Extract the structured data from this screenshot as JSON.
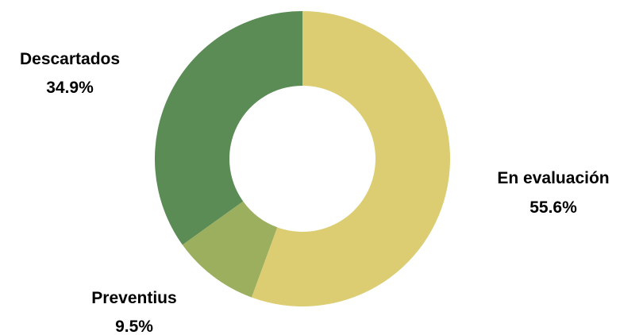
{
  "chart_data": {
    "type": "pie",
    "donut": true,
    "title": "",
    "slices": [
      {
        "name": "En evaluación",
        "value": 55.6,
        "label": "55.6%",
        "color": "#dccd72"
      },
      {
        "name": "Preventius",
        "value": 9.5,
        "label": "9.5%",
        "color": "#9caf5f"
      },
      {
        "name": "Descartados",
        "value": 34.9,
        "label": "34.9%",
        "color": "#5b8c55"
      }
    ]
  }
}
